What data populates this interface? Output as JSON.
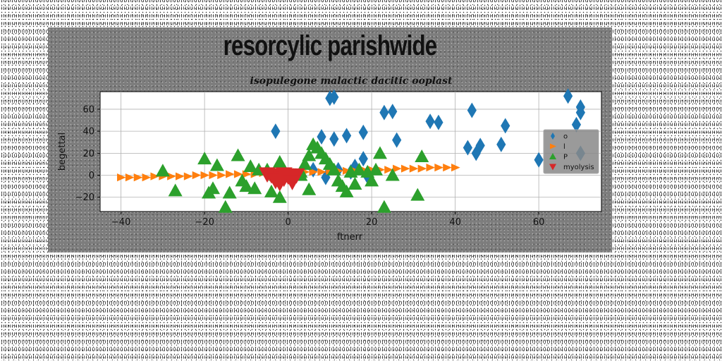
{
  "figure": {
    "title": "resorcylic parishwide"
  },
  "chart_data": {
    "type": "scatter",
    "title": "isopulegone malactic dacitic ooplast",
    "xlabel": "ftnerr",
    "ylabel": "begettal",
    "xlim": [
      -45,
      75
    ],
    "ylim": [
      -33,
      76
    ],
    "xticks": [
      -40,
      -20,
      0,
      20,
      40,
      60
    ],
    "yticks": [
      -20,
      0,
      20,
      40,
      60
    ],
    "grid": true,
    "legend_position": "right",
    "series": [
      {
        "name": "o",
        "marker": "thin-diamond",
        "color": "#1f77b4",
        "points": [
          [
            -3,
            40
          ],
          [
            10,
            70
          ],
          [
            11,
            71
          ],
          [
            8,
            35
          ],
          [
            11,
            33
          ],
          [
            14,
            36
          ],
          [
            18,
            39
          ],
          [
            18,
            15
          ],
          [
            23,
            57
          ],
          [
            25,
            58
          ],
          [
            26,
            32
          ],
          [
            34,
            49
          ],
          [
            36,
            48
          ],
          [
            44,
            59
          ],
          [
            43,
            25
          ],
          [
            45,
            20
          ],
          [
            46,
            27
          ],
          [
            51,
            28
          ],
          [
            52,
            45
          ],
          [
            60,
            14
          ],
          [
            67,
            72
          ],
          [
            70,
            62
          ],
          [
            70,
            57
          ],
          [
            69,
            46
          ],
          [
            70,
            20
          ],
          [
            9,
            -2
          ],
          [
            12,
            5
          ],
          [
            15,
            3
          ],
          [
            19,
            -1
          ],
          [
            16,
            8
          ],
          [
            6,
            5
          ]
        ]
      },
      {
        "name": "l",
        "marker": "triangle-right",
        "color": "#ff7f0e",
        "points": [
          [
            -40,
            -2
          ],
          [
            -38,
            -2
          ],
          [
            -36,
            -2
          ],
          [
            -34,
            -2
          ],
          [
            -32,
            -1
          ],
          [
            -30,
            -1
          ],
          [
            -28,
            -1
          ],
          [
            -26,
            -1
          ],
          [
            -24,
            -1
          ],
          [
            -22,
            0
          ],
          [
            -20,
            0
          ],
          [
            -18,
            0
          ],
          [
            -16,
            0
          ],
          [
            -14,
            1
          ],
          [
            -12,
            1
          ],
          [
            -10,
            1
          ],
          [
            -8,
            1
          ],
          [
            -6,
            2
          ],
          [
            -4,
            2
          ],
          [
            -2,
            2
          ],
          [
            0,
            2
          ],
          [
            2,
            3
          ],
          [
            4,
            3
          ],
          [
            6,
            3
          ],
          [
            8,
            3
          ],
          [
            10,
            4
          ],
          [
            12,
            4
          ],
          [
            14,
            4
          ],
          [
            16,
            4
          ],
          [
            18,
            5
          ],
          [
            20,
            5
          ],
          [
            22,
            5
          ],
          [
            24,
            5
          ],
          [
            26,
            6
          ],
          [
            28,
            6
          ],
          [
            30,
            6
          ],
          [
            32,
            6
          ],
          [
            34,
            7
          ],
          [
            36,
            7
          ],
          [
            38,
            7
          ],
          [
            40,
            7
          ]
        ]
      },
      {
        "name": "P",
        "marker": "triangle-up",
        "color": "#2ca02c",
        "points": [
          [
            -30,
            4
          ],
          [
            -27,
            -14
          ],
          [
            -20,
            15
          ],
          [
            -19,
            -16
          ],
          [
            -18,
            -12
          ],
          [
            -17,
            9
          ],
          [
            -15,
            -29
          ],
          [
            -14,
            -16
          ],
          [
            -12,
            18
          ],
          [
            -11,
            -5
          ],
          [
            -10,
            -10
          ],
          [
            -9,
            8
          ],
          [
            -8,
            -12
          ],
          [
            -7,
            5
          ],
          [
            -5,
            5
          ],
          [
            -4,
            -15
          ],
          [
            -2,
            12
          ],
          [
            -2,
            -20
          ],
          [
            0,
            -1
          ],
          [
            3,
            3
          ],
          [
            4,
            10
          ],
          [
            5,
            18
          ],
          [
            5,
            -13
          ],
          [
            6,
            28
          ],
          [
            7,
            25
          ],
          [
            8,
            20
          ],
          [
            9,
            15
          ],
          [
            10,
            10
          ],
          [
            11,
            5
          ],
          [
            12,
            -5
          ],
          [
            13,
            -10
          ],
          [
            14,
            -15
          ],
          [
            15,
            3
          ],
          [
            16,
            -8
          ],
          [
            17,
            5
          ],
          [
            19,
            3
          ],
          [
            20,
            -5
          ],
          [
            21,
            5
          ],
          [
            22,
            20
          ],
          [
            23,
            -29
          ],
          [
            25,
            0
          ],
          [
            31,
            -18
          ],
          [
            32,
            17
          ],
          [
            -3,
            0
          ],
          [
            3,
            0
          ]
        ]
      },
      {
        "name": "myolysis",
        "marker": "triangle-down",
        "color": "#d62728",
        "points": [
          [
            -4,
            0
          ],
          [
            -3,
            -2
          ],
          [
            -2,
            0
          ],
          [
            -1,
            -3
          ],
          [
            0,
            -1
          ],
          [
            1,
            -4
          ],
          [
            -5,
            1
          ],
          [
            0,
            0
          ],
          [
            2,
            0
          ],
          [
            -3,
            -5
          ],
          [
            -1,
            1
          ],
          [
            1,
            -6
          ],
          [
            -2,
            -7
          ]
        ]
      }
    ]
  }
}
